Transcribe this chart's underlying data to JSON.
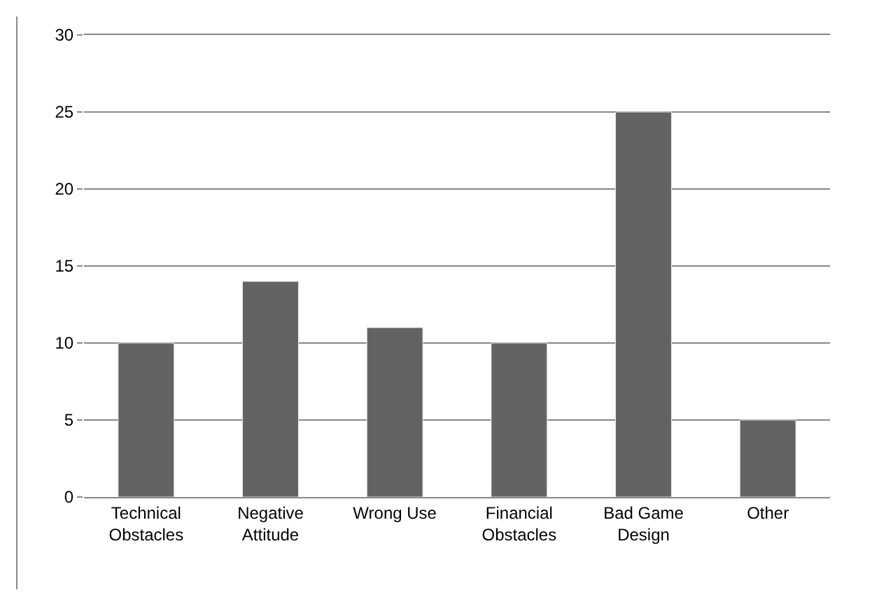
{
  "chart_data": {
    "type": "bar",
    "categories": [
      "Technical\nObstacles",
      "Negative\nAttitude",
      "Wrong Use",
      "Financial\nObstacles",
      "Bad Game\nDesign",
      "Other"
    ],
    "values": [
      10,
      14,
      11,
      10,
      25,
      5
    ],
    "color": "#636363",
    "ylim": [
      0,
      30
    ],
    "yticks": [
      0,
      5,
      10,
      15,
      20,
      25,
      30
    ],
    "grid": "y"
  }
}
